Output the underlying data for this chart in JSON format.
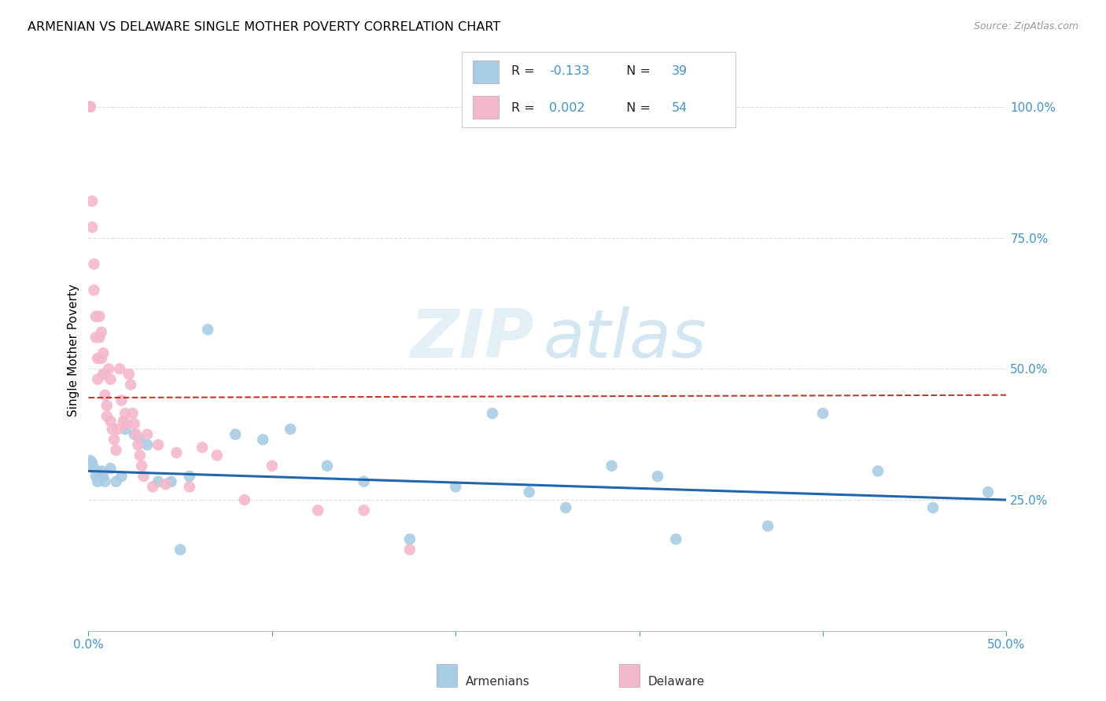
{
  "title": "ARMENIAN VS DELAWARE SINGLE MOTHER POVERTY CORRELATION CHART",
  "source": "Source: ZipAtlas.com",
  "ylabel": "Single Mother Poverty",
  "blue_color": "#a8cce4",
  "pink_color": "#f4b8cc",
  "blue_line_color": "#2166ac",
  "pink_line_color": "#c0392b",
  "right_axis_color": "#4393c3",
  "grid_color": "#dddddd",
  "value_color": "#4393c3",
  "label_color": "#333333",
  "armenians_R": -0.133,
  "armenians_N": 39,
  "delaware_R": 0.002,
  "delaware_N": 54,
  "xlim": [
    0.0,
    0.5
  ],
  "ylim_min": 0.0,
  "ylim_max": 1.07,
  "yticks": [
    0.25,
    0.5,
    0.75,
    1.0
  ],
  "ytick_labels": [
    "25.0%",
    "50.0%",
    "75.0%",
    "100.0%"
  ],
  "xtick_vals": [
    0.0,
    0.1,
    0.2,
    0.3,
    0.4,
    0.5
  ],
  "armenians_x": [
    0.001,
    0.002,
    0.003,
    0.004,
    0.005,
    0.006,
    0.007,
    0.008,
    0.009,
    0.012,
    0.015,
    0.018,
    0.02,
    0.025,
    0.028,
    0.032,
    0.038,
    0.045,
    0.055,
    0.065,
    0.08,
    0.095,
    0.11,
    0.13,
    0.15,
    0.175,
    0.2,
    0.24,
    0.285,
    0.32,
    0.37,
    0.4,
    0.43,
    0.46,
    0.49,
    0.22,
    0.26,
    0.31,
    0.05
  ],
  "armenians_y": [
    0.325,
    0.32,
    0.31,
    0.295,
    0.285,
    0.3,
    0.305,
    0.295,
    0.285,
    0.31,
    0.285,
    0.295,
    0.385,
    0.375,
    0.365,
    0.355,
    0.285,
    0.285,
    0.295,
    0.575,
    0.375,
    0.365,
    0.385,
    0.315,
    0.285,
    0.175,
    0.275,
    0.265,
    0.315,
    0.175,
    0.2,
    0.415,
    0.305,
    0.235,
    0.265,
    0.415,
    0.235,
    0.295,
    0.155
  ],
  "delaware_x": [
    0.001,
    0.001,
    0.002,
    0.002,
    0.003,
    0.003,
    0.004,
    0.004,
    0.005,
    0.005,
    0.006,
    0.006,
    0.007,
    0.007,
    0.008,
    0.008,
    0.009,
    0.009,
    0.01,
    0.01,
    0.011,
    0.012,
    0.012,
    0.013,
    0.014,
    0.015,
    0.016,
    0.017,
    0.018,
    0.019,
    0.02,
    0.021,
    0.022,
    0.023,
    0.024,
    0.025,
    0.026,
    0.027,
    0.028,
    0.029,
    0.03,
    0.032,
    0.035,
    0.038,
    0.042,
    0.048,
    0.055,
    0.062,
    0.07,
    0.085,
    0.1,
    0.125,
    0.15,
    0.175
  ],
  "delaware_y": [
    1.0,
    1.0,
    0.82,
    0.77,
    0.7,
    0.65,
    0.6,
    0.56,
    0.52,
    0.48,
    0.6,
    0.56,
    0.52,
    0.57,
    0.53,
    0.49,
    0.45,
    0.49,
    0.43,
    0.41,
    0.5,
    0.48,
    0.4,
    0.385,
    0.365,
    0.345,
    0.385,
    0.5,
    0.44,
    0.4,
    0.415,
    0.395,
    0.49,
    0.47,
    0.415,
    0.395,
    0.375,
    0.355,
    0.335,
    0.315,
    0.295,
    0.375,
    0.275,
    0.355,
    0.28,
    0.34,
    0.275,
    0.35,
    0.335,
    0.25,
    0.315,
    0.23,
    0.23,
    0.155
  ],
  "watermark_zip_color": "#cde0f0",
  "watermark_atlas_color": "#b0d0e8"
}
